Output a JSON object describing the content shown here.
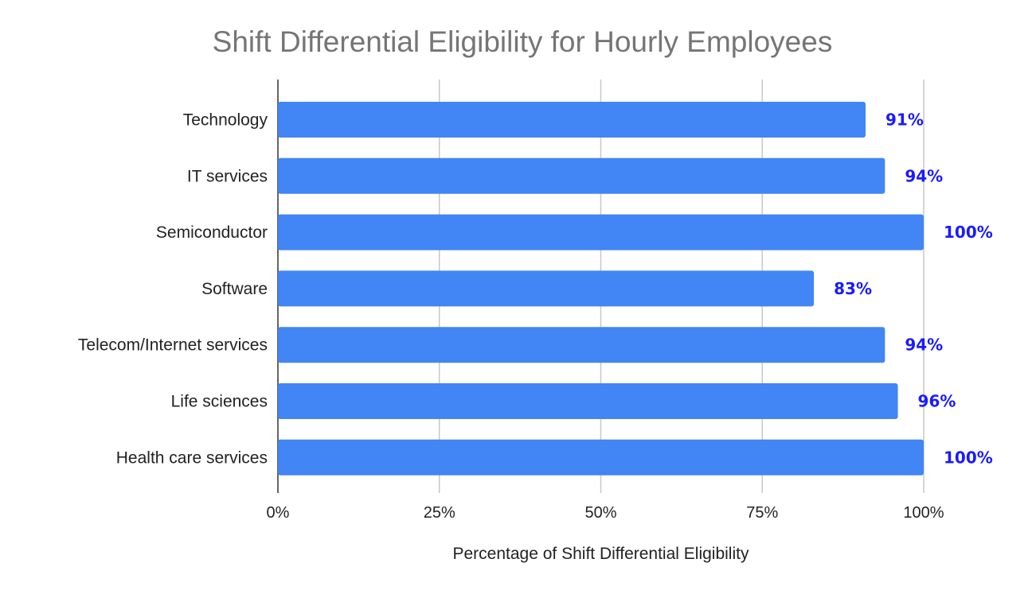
{
  "chart_data": {
    "type": "bar",
    "orientation": "horizontal",
    "title": "Shift Differential Eligibility for Hourly Employees",
    "xlabel": "Percentage of Shift Differential Eligibility",
    "ylabel": "",
    "categories": [
      "Technology",
      "IT services",
      "Semiconductor",
      "Software",
      "Telecom/Internet services",
      "Life sciences",
      "Health care services"
    ],
    "values": [
      91,
      94,
      100,
      83,
      94,
      96,
      100
    ],
    "data_labels": [
      "91%",
      "94%",
      "100%",
      "83%",
      "94%",
      "96%",
      "100%"
    ],
    "xlim": [
      0,
      100
    ],
    "xticks": [
      0,
      25,
      50,
      75,
      100
    ],
    "xtick_labels": [
      "0%",
      "25%",
      "50%",
      "75%",
      "100%"
    ],
    "grid": true,
    "bar_color": "#4285f4",
    "label_color": "#1a1aff"
  }
}
